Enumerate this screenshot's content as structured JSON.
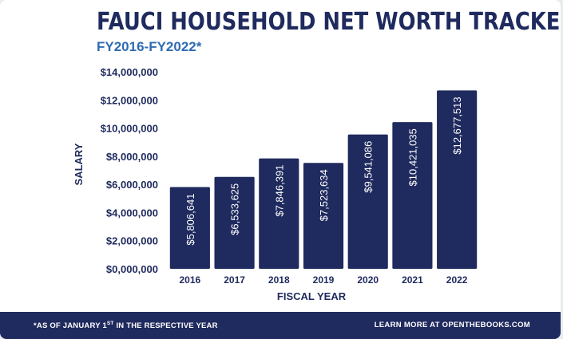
{
  "colors": {
    "navy": "#1f2a5e",
    "accent_blue": "#2f6bb3",
    "bar_label": "#ffffff"
  },
  "header": {
    "title": "FAUCI HOUSEHOLD NET WORTH TRACKER",
    "subtitle": "FY2016-FY2022*"
  },
  "chart_data": {
    "type": "bar",
    "title": "FAUCI HOUSEHOLD NET WORTH TRACKER",
    "subtitle": "FY2016-FY2022*",
    "xlabel": "FISCAL YEAR",
    "ylabel": "SALARY",
    "categories": [
      "2016",
      "2017",
      "2018",
      "2019",
      "2020",
      "2021",
      "2022"
    ],
    "values": [
      5806641,
      6533625,
      7846391,
      7523634,
      9541086,
      10421035,
      12677513
    ],
    "data_labels": [
      "$5,806,641",
      "$6,533,625",
      "$7,846,391",
      "$7,523,634",
      "$9,541,086",
      "$10,421,035",
      "$12,677,513"
    ],
    "ylim": [
      0,
      14000000
    ],
    "y_ticks": [
      0,
      2000000,
      4000000,
      6000000,
      8000000,
      10000000,
      12000000,
      14000000
    ],
    "y_tick_labels": [
      "$0,000,000",
      "$2,000,000",
      "$4,000,000",
      "$6,000,000",
      "$8,000,000",
      "$10,000,000",
      "$12,000,000",
      "$14,000,000"
    ],
    "grid": false,
    "legend": "none",
    "bar_color": "#1f2a5e"
  },
  "footer": {
    "note_prefix": "*AS OF JANUARY 1",
    "note_sup": "ST",
    "note_suffix": " IN THE RESPECTIVE YEAR",
    "link": "LEARN MORE AT OPENTHEBOOKS.COM"
  }
}
